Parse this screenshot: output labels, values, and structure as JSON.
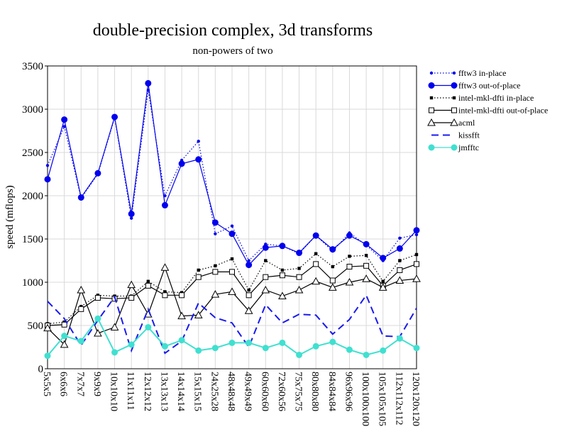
{
  "chart_data": {
    "type": "line",
    "title": "double-precision complex, 3d transforms",
    "subtitle": "non-powers of two",
    "y_label": "speed (mflops)",
    "categories": [
      "5x5x5",
      "6x6x6",
      "7x7x7",
      "9x9x9",
      "10x10x10",
      "11x11x11",
      "12x12x12",
      "13x13x13",
      "14x14x14",
      "15x15x15",
      "24x25x28",
      "48x48x48",
      "49x49x49",
      "60x60x60",
      "72x60x56",
      "75x75x75",
      "80x80x80",
      "84x84x84",
      "96x96x96",
      "100x100x100",
      "105x105x105",
      "112x112x112",
      "120x120x120"
    ],
    "ylim": [
      0,
      3500
    ],
    "yticks": [
      0,
      500,
      1000,
      1500,
      2000,
      2500,
      3000,
      3500
    ],
    "grid": true,
    "legend": "upper-right",
    "series": [
      {
        "name": "fftw3 in-place",
        "color": "#0000ee",
        "dash": "dotted",
        "marker": "dot",
        "values": [
          2350,
          2800,
          1970,
          2250,
          2900,
          1740,
          3220,
          2000,
          2410,
          2630,
          1560,
          1650,
          1250,
          1440,
          1420,
          1330,
          1540,
          1360,
          1570,
          1430,
          1250,
          1510,
          1550
        ]
      },
      {
        "name": "fftw3 out-of-place",
        "color": "#0000ee",
        "dash": "solid",
        "marker": "circle",
        "values": [
          2190,
          2880,
          1980,
          2260,
          2910,
          1790,
          3300,
          1890,
          2370,
          2420,
          1690,
          1560,
          1200,
          1400,
          1420,
          1340,
          1540,
          1380,
          1540,
          1440,
          1280,
          1390,
          1600
        ]
      },
      {
        "name": "intel-mkl-dfti in-place",
        "color": "#000000",
        "dash": "dotted",
        "marker": "square",
        "values": [
          520,
          540,
          720,
          850,
          840,
          840,
          1010,
          890,
          880,
          1140,
          1190,
          1270,
          910,
          1250,
          1140,
          1160,
          1330,
          1180,
          1300,
          1310,
          1010,
          1250,
          1320
        ]
      },
      {
        "name": "intel-mkl-dfti out-of-place",
        "color": "#000000",
        "dash": "solid",
        "marker": "open-square",
        "values": [
          500,
          510,
          690,
          820,
          810,
          820,
          960,
          850,
          850,
          1060,
          1120,
          1120,
          850,
          1060,
          1080,
          1060,
          1210,
          1020,
          1180,
          1190,
          960,
          1140,
          1210
        ]
      },
      {
        "name": "acml",
        "color": "#000000",
        "dash": "solid",
        "marker": "triangle",
        "values": [
          470,
          280,
          910,
          410,
          480,
          970,
          630,
          1170,
          610,
          620,
          860,
          890,
          670,
          910,
          840,
          910,
          1010,
          940,
          1000,
          1040,
          940,
          1020,
          1040
        ]
      },
      {
        "name": "kissfft",
        "color": "#1a1aee",
        "dash": "dashed",
        "marker": "none",
        "values": [
          780,
          580,
          270,
          560,
          830,
          210,
          690,
          180,
          320,
          760,
          590,
          530,
          250,
          740,
          530,
          630,
          620,
          400,
          570,
          850,
          380,
          370,
          700
        ]
      },
      {
        "name": "jmfftc",
        "color": "#40e0d0",
        "dash": "solid",
        "marker": "circle",
        "values": [
          150,
          380,
          320,
          580,
          190,
          280,
          480,
          260,
          330,
          210,
          240,
          300,
          300,
          240,
          300,
          160,
          260,
          310,
          220,
          160,
          210,
          350,
          240
        ]
      }
    ]
  }
}
